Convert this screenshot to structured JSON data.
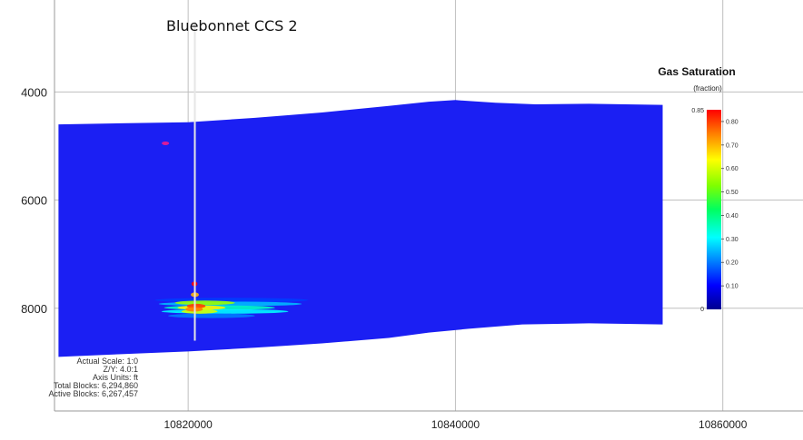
{
  "chart_data": {
    "type": "heatmap",
    "title": "",
    "xlabel": "",
    "ylabel": "",
    "xlim": [
      10810000,
      10866000
    ],
    "ylim": [
      9900,
      2300
    ],
    "x_ticks": [
      10820000,
      10840000,
      10860000
    ],
    "x_tick_labels": [
      "10820000",
      "10840000",
      "10860000"
    ],
    "y_ticks": [
      4000,
      6000,
      8000
    ],
    "y_tick_labels": [
      "4000",
      "6000",
      "8000"
    ],
    "grid": true,
    "well": {
      "name": "Bluebonnet CCS 2",
      "x": 10820500,
      "top_depth": 2700,
      "bottom_depth": 8600
    },
    "colorbar": {
      "title": "Gas Saturation",
      "unit": "(fraction)",
      "min": 0,
      "max": 0.85,
      "max_label": "0.85",
      "min_label": "0",
      "ticks": [
        "0.80",
        "0.70",
        "0.60",
        "0.50",
        "0.40",
        "0.30",
        "0.20",
        "0.10"
      ],
      "placement": "right"
    },
    "reservoir_top": [
      [
        10810300,
        4600
      ],
      [
        10815000,
        4580
      ],
      [
        10820000,
        4560
      ],
      [
        10825000,
        4480
      ],
      [
        10830000,
        4380
      ],
      [
        10835000,
        4260
      ],
      [
        10838000,
        4180
      ],
      [
        10840000,
        4150
      ],
      [
        10843000,
        4200
      ],
      [
        10846000,
        4230
      ],
      [
        10850000,
        4220
      ],
      [
        10855500,
        4240
      ]
    ],
    "reservoir_bottom": [
      [
        10810300,
        8900
      ],
      [
        10815000,
        8850
      ],
      [
        10820000,
        8800
      ],
      [
        10825000,
        8730
      ],
      [
        10830000,
        8650
      ],
      [
        10835000,
        8550
      ],
      [
        10838000,
        8450
      ],
      [
        10841000,
        8380
      ],
      [
        10845000,
        8300
      ],
      [
        10850000,
        8280
      ],
      [
        10855500,
        8300
      ]
    ],
    "plume": [
      {
        "x0": 10817500,
        "x1": 10829000,
        "y": 7850,
        "value": 0.15
      },
      {
        "x0": 10817800,
        "x1": 10828500,
        "y": 7920,
        "value": 0.25
      },
      {
        "x0": 10818200,
        "x1": 10826500,
        "y": 7990,
        "value": 0.35
      },
      {
        "x0": 10818000,
        "x1": 10827500,
        "y": 8060,
        "value": 0.3
      },
      {
        "x0": 10818500,
        "x1": 10825000,
        "y": 8140,
        "value": 0.2
      },
      {
        "x0": 10819000,
        "x1": 10823500,
        "y": 7900,
        "value": 0.55
      },
      {
        "x0": 10819200,
        "x1": 10822800,
        "y": 7990,
        "value": 0.65
      },
      {
        "x0": 10819500,
        "x1": 10822200,
        "y": 8060,
        "value": 0.6
      },
      {
        "x0": 10819900,
        "x1": 10821300,
        "y": 7960,
        "value": 0.8
      },
      {
        "x0": 10819800,
        "x1": 10821100,
        "y": 8020,
        "value": 0.75
      },
      {
        "x0": 10820250,
        "x1": 10820700,
        "y": 7550,
        "value": 0.85
      },
      {
        "x0": 10820200,
        "x1": 10820800,
        "y": 7750,
        "value": 0.7
      }
    ],
    "marker": {
      "x": 10818300,
      "y": 4950,
      "color": "#d81b9b"
    }
  },
  "info": {
    "lines": [
      "Actual Scale: 1:0",
      "Z/Y: 4.0:1",
      "Axis Units: ft",
      "Total Blocks: 6,294,860",
      "Active Blocks: 6,267,457"
    ]
  },
  "colors": {
    "reservoir": "#1b1ff3",
    "grid": "#bfbfbf",
    "well": "#e6e6e6"
  }
}
